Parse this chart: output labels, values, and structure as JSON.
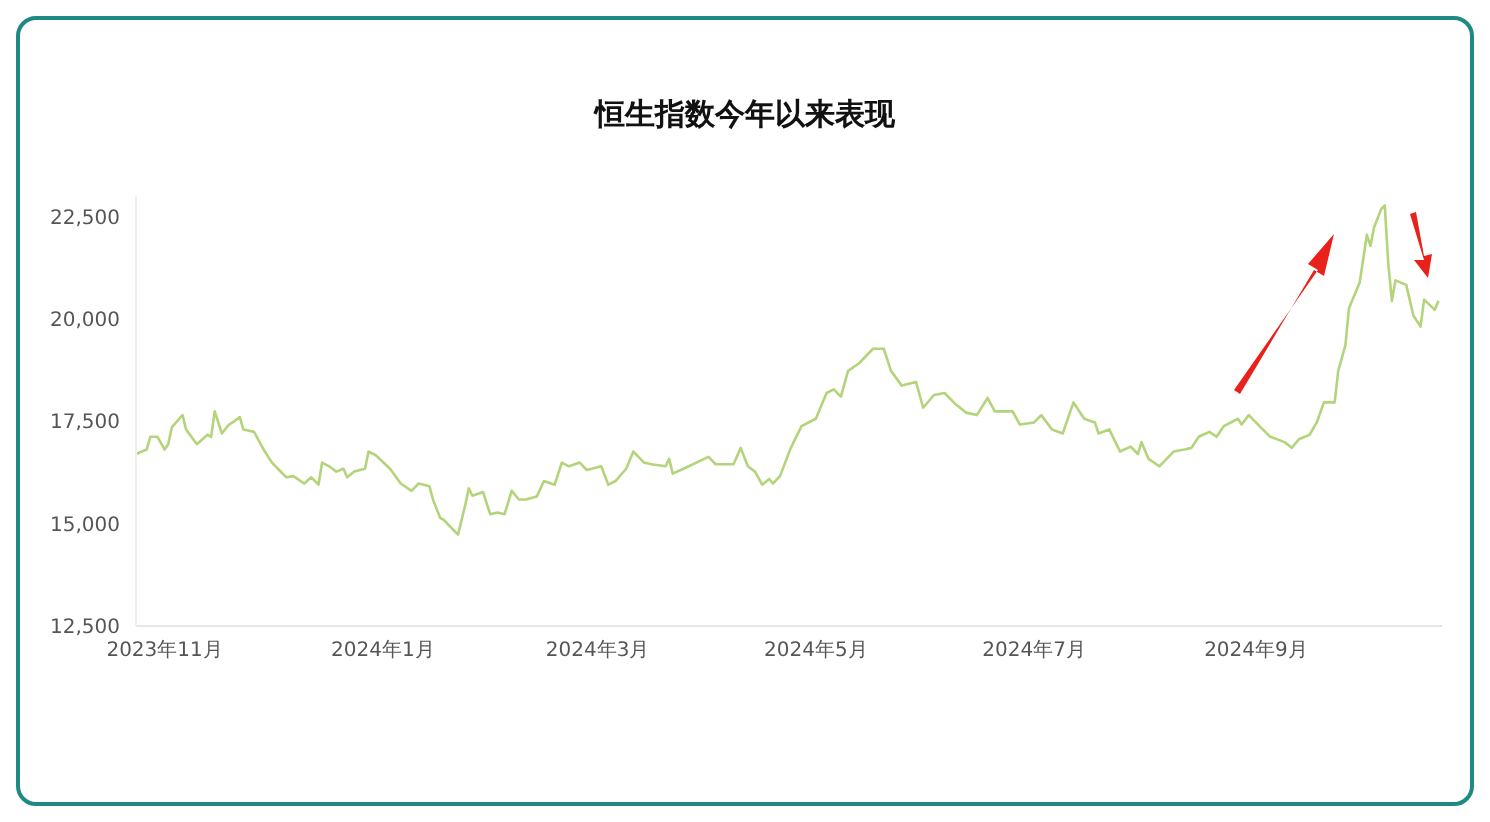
{
  "chart_data": {
    "type": "line",
    "title": "恒生指数今年以来表现",
    "x": [
      "2023-10-24",
      "2023-10-27",
      "2023-10-28",
      "2023-10-30",
      "2023-11-01",
      "2023-11-02",
      "2023-11-03",
      "2023-11-06",
      "2023-11-07",
      "2023-11-10",
      "2023-11-13",
      "2023-11-14",
      "2023-11-15",
      "2023-11-17",
      "2023-11-19",
      "2023-11-20",
      "2023-11-22",
      "2023-11-23",
      "2023-11-26",
      "2023-11-29",
      "2023-12-01",
      "2023-12-03",
      "2023-12-05",
      "2023-12-07",
      "2023-12-10",
      "2023-12-12",
      "2023-12-14",
      "2023-12-15",
      "2023-12-17",
      "2023-12-19",
      "2023-12-21",
      "2023-12-22",
      "2023-12-24",
      "2023-12-27",
      "2023-12-28",
      "2023-12-30",
      "2024-01-03",
      "2024-01-06",
      "2024-01-09",
      "2024-01-11",
      "2024-01-14",
      "2024-01-15",
      "2024-01-17",
      "2024-01-18",
      "2024-01-20",
      "2024-01-21",
      "2024-01-22",
      "2024-01-24",
      "2024-01-25",
      "2024-01-26",
      "2024-01-29",
      "2024-01-31",
      "2024-02-02",
      "2024-02-04",
      "2024-02-06",
      "2024-02-08",
      "2024-02-10",
      "2024-02-13",
      "2024-02-15",
      "2024-02-18",
      "2024-02-20",
      "2024-02-22",
      "2024-02-25",
      "2024-02-27",
      "2024-03-02",
      "2024-03-04",
      "2024-03-06",
      "2024-03-09",
      "2024-03-11",
      "2024-03-14",
      "2024-03-16",
      "2024-03-20",
      "2024-03-21",
      "2024-03-22",
      "2024-03-25",
      "2024-04-01",
      "2024-04-03",
      "2024-04-08",
      "2024-04-10",
      "2024-04-12",
      "2024-04-14",
      "2024-04-16",
      "2024-04-18",
      "2024-04-19",
      "2024-04-21",
      "2024-04-24",
      "2024-04-27",
      "2024-05-01",
      "2024-05-04",
      "2024-05-06",
      "2024-05-08",
      "2024-05-10",
      "2024-05-13",
      "2024-05-17",
      "2024-05-20",
      "2024-05-22",
      "2024-05-25",
      "2024-05-29",
      "2024-05-31",
      "2024-06-03",
      "2024-06-06",
      "2024-06-09",
      "2024-06-12",
      "2024-06-15",
      "2024-06-18",
      "2024-06-20",
      "2024-06-25",
      "2024-06-27",
      "2024-07-01",
      "2024-07-03",
      "2024-07-06",
      "2024-07-09",
      "2024-07-12",
      "2024-07-15",
      "2024-07-18",
      "2024-07-19",
      "2024-07-22",
      "2024-07-25",
      "2024-07-28",
      "2024-07-30",
      "2024-07-31",
      "2024-08-02",
      "2024-08-05",
      "2024-08-09",
      "2024-08-12",
      "2024-08-14",
      "2024-08-16",
      "2024-08-19",
      "2024-08-21",
      "2024-08-23",
      "2024-08-27",
      "2024-08-28",
      "2024-08-30",
      "2024-09-02",
      "2024-09-05",
      "2024-09-09",
      "2024-09-11",
      "2024-09-13",
      "2024-09-16",
      "2024-09-18",
      "2024-09-20",
      "2024-09-23",
      "2024-09-24",
      "2024-09-26",
      "2024-09-27",
      "2024-09-30",
      "2024-10-02",
      "2024-10-03",
      "2024-10-04",
      "2024-10-06",
      "2024-10-07",
      "2024-10-08",
      "2024-10-09",
      "2024-10-10",
      "2024-10-13",
      "2024-10-15",
      "2024-10-17",
      "2024-10-18",
      "2024-10-21",
      "2024-10-22"
    ],
    "series": [
      {
        "color": "#b3d47a",
        "values": [
          16700,
          16810,
          17120,
          17120,
          16810,
          16940,
          17350,
          17650,
          17300,
          16940,
          17170,
          17120,
          17740,
          17200,
          17420,
          17470,
          17600,
          17300,
          17240,
          16760,
          16490,
          16310,
          16130,
          16160,
          15980,
          16130,
          15950,
          16490,
          16400,
          16270,
          16340,
          16130,
          16270,
          16340,
          16760,
          16670,
          16340,
          15980,
          15800,
          15980,
          15910,
          15590,
          15140,
          15090,
          14910,
          14820,
          14730,
          15450,
          15860,
          15680,
          15770,
          15230,
          15270,
          15230,
          15800,
          15590,
          15590,
          15660,
          16040,
          15950,
          16490,
          16400,
          16490,
          16310,
          16400,
          15950,
          16040,
          16340,
          16760,
          16490,
          16450,
          16400,
          16580,
          16220,
          16340,
          16630,
          16450,
          16450,
          16850,
          16400,
          16270,
          15950,
          16090,
          15980,
          16160,
          16850,
          17380,
          17560,
          18190,
          18280,
          18100,
          18730,
          18910,
          19270,
          19270,
          18730,
          18370,
          18460,
          17830,
          18140,
          18190,
          17920,
          17710,
          17650,
          18070,
          17740,
          17740,
          17420,
          17470,
          17650,
          17300,
          17200,
          17960,
          17560,
          17470,
          17200,
          17300,
          16760,
          16880,
          16700,
          16990,
          16580,
          16400,
          16760,
          16810,
          16850,
          17120,
          17240,
          17120,
          17380,
          17560,
          17420,
          17650,
          17380,
          17120,
          16990,
          16850,
          17060,
          17170,
          17470,
          17960,
          17960,
          18730,
          19360,
          20260,
          20890,
          22050,
          21780,
          22230,
          22680,
          22770,
          21330,
          20440,
          20940,
          20830,
          20080,
          19810,
          20470,
          20220,
          20440
        ]
      }
    ],
    "xlim": [
      "2023-10-24",
      "2024-10-23"
    ],
    "xticks": [
      {
        "value": "2023-11-01",
        "label": "2023年11月"
      },
      {
        "value": "2024-01-01",
        "label": "2024年1月"
      },
      {
        "value": "2024-03-01",
        "label": "2024年3月"
      },
      {
        "value": "2024-05-01",
        "label": "2024年5月"
      },
      {
        "value": "2024-07-01",
        "label": "2024年7月"
      },
      {
        "value": "2024-09-01",
        "label": "2024年9月"
      }
    ],
    "ylim": [
      12500,
      23000
    ],
    "yticks": [
      {
        "value": 12500,
        "label": "12,500"
      },
      {
        "value": 15000,
        "label": "15,000"
      },
      {
        "value": 17500,
        "label": "17,500"
      },
      {
        "value": 20000,
        "label": "20,000"
      },
      {
        "value": 22500,
        "label": "22,500"
      }
    ],
    "grid": false,
    "legend": false,
    "marker": "none",
    "line_style": "solid"
  }
}
